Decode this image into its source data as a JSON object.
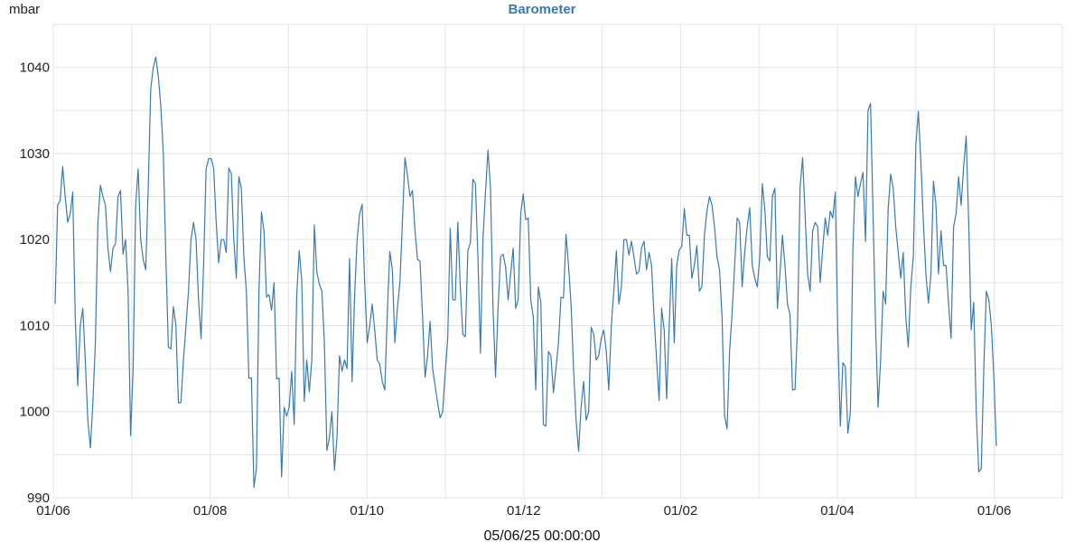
{
  "colors": {
    "line": "#3a7ab0",
    "title": "#3a7ab0",
    "grid": "#e3e3e3"
  },
  "footer": {
    "timestamp": "05/06/25 00:00:00"
  },
  "chart_data": {
    "type": "line",
    "title": "Barometer",
    "ylabel": "mbar",
    "xlabel": "",
    "ylim": [
      990,
      1045
    ],
    "y_ticks": [
      990,
      1000,
      1010,
      1020,
      1030,
      1040
    ],
    "x_tick_labels": [
      "01/06",
      "01/08",
      "01/10",
      "01/12",
      "01/02",
      "01/04",
      "01/06"
    ],
    "grid": true,
    "series": [
      {
        "values": [
          1012.5,
          1024.0,
          1024.5,
          1028.5,
          1025.0,
          1022.0,
          1023.0,
          1025.5,
          1011.0,
          1003.0,
          1010.0,
          1012.0,
          1006.0,
          999.0,
          995.8,
          1001.0,
          1008.0,
          1022.0,
          1026.3,
          1025.0,
          1024.0,
          1019.0,
          1016.3,
          1019.0,
          1019.5,
          1025.0,
          1025.7,
          1018.3,
          1020.0,
          1014.0,
          997.2,
          1005.0,
          1024.0,
          1028.2,
          1020.0,
          1017.7,
          1016.5,
          1026.0,
          1037.5,
          1040.0,
          1041.2,
          1039.0,
          1035.5,
          1030.0,
          1018.0,
          1007.5,
          1007.3,
          1012.2,
          1010.0,
          1001.0,
          1001.1,
          1006.0,
          1010.0,
          1014.0,
          1020.0,
          1022.0,
          1020.0,
          1013.0,
          1008.5,
          1017.0,
          1028.2,
          1029.4,
          1029.4,
          1028.3,
          1022.0,
          1017.3,
          1020.0,
          1020.0,
          1018.5,
          1028.3,
          1027.7,
          1020.0,
          1015.5,
          1027.3,
          1026.0,
          1018.0,
          1014.0,
          1003.9,
          1003.9,
          991.2,
          993.5,
          1014.0,
          1023.2,
          1021.0,
          1013.3,
          1013.6,
          1011.8,
          1015.0,
          1003.8,
          1003.9,
          992.4,
          1000.5,
          999.5,
          1000.5,
          1004.7,
          998.5,
          1013.5,
          1018.7,
          1015.3,
          1001.2,
          1006.0,
          1002.3,
          1006.0,
          1021.7,
          1016.2,
          1014.8,
          1014.0,
          1008.0,
          995.5,
          997.0,
          1000.0,
          993.2,
          997.0,
          1006.5,
          1004.7,
          1006.0,
          1005.0,
          1017.8,
          1003.5,
          1013.5,
          1020.0,
          1023.0,
          1024.1,
          1015.0,
          1008.0,
          1010.0,
          1012.5,
          1009.5,
          1006.0,
          1005.5,
          1003.5,
          1002.5,
          1011.5,
          1018.6,
          1016.5,
          1008.0,
          1012.0,
          1015.0,
          1022.0,
          1029.5,
          1027.5,
          1025.0,
          1025.7,
          1021.0,
          1017.7,
          1017.5,
          1011.0,
          1004.0,
          1006.5,
          1010.5,
          1005.0,
          1003.0,
          1001.0,
          999.3,
          1000.0,
          1004.5,
          1008.5,
          1021.3,
          1013.0,
          1013.0,
          1022.0,
          1014.5,
          1009.0,
          1008.7,
          1018.7,
          1019.6,
          1027.0,
          1026.5,
          1018.0,
          1006.8,
          1020.0,
          1025.5,
          1030.4,
          1026.0,
          1012.0,
          1004.0,
          1012.0,
          1018.0,
          1018.3,
          1016.8,
          1013.0,
          1016.0,
          1019.0,
          1012.0,
          1013.0,
          1023.0,
          1025.3,
          1022.3,
          1022.5,
          1013.0,
          1011.0,
          1002.5,
          1014.5,
          1012.7,
          998.5,
          998.3,
          1007.0,
          1006.5,
          1002.2,
          1005.0,
          1008.0,
          1013.3,
          1013.2,
          1020.6,
          1017.0,
          1012.5,
          1005.0,
          999.0,
          995.4,
          1000.5,
          1003.5,
          999.0,
          1000.0,
          1009.8,
          1009.0,
          1006.0,
          1006.5,
          1008.5,
          1009.5,
          1007.0,
          1002.5,
          1010.0,
          1014.0,
          1018.7,
          1012.5,
          1014.5,
          1020.0,
          1020.0,
          1018.2,
          1019.8,
          1018.0,
          1016.0,
          1016.3,
          1019.0,
          1019.8,
          1016.5,
          1018.5,
          1017.0,
          1011.0,
          1006.0,
          1001.3,
          1012.0,
          1009.5,
          1001.5,
          1010.0,
          1017.8,
          1008.0,
          1017.0,
          1018.8,
          1019.2,
          1023.6,
          1020.5,
          1020.5,
          1015.5,
          1017.0,
          1019.3,
          1014.0,
          1014.5,
          1020.5,
          1023.3,
          1025.0,
          1024.0,
          1021.5,
          1018.0,
          1016.5,
          1011.0,
          999.5,
          998.0,
          1007.0,
          1011.5,
          1017.0,
          1022.5,
          1022.0,
          1014.5,
          1018.5,
          1021.5,
          1023.7,
          1017.0,
          1015.5,
          1014.5,
          1018.0,
          1026.5,
          1023.5,
          1018.0,
          1017.5,
          1025.0,
          1026.0,
          1012.0,
          1016.0,
          1020.5,
          1017.0,
          1012.5,
          1011.3,
          1002.5,
          1002.6,
          1010.0,
          1026.0,
          1029.5,
          1023.0,
          1016.0,
          1014.0,
          1021.0,
          1022.0,
          1021.5,
          1015.0,
          1019.0,
          1022.5,
          1020.5,
          1023.3,
          1022.5,
          1025.5,
          1009.0,
          998.3,
          1005.7,
          1005.2,
          997.5,
          1000.0,
          1019.0,
          1027.3,
          1025.0,
          1026.5,
          1027.8,
          1019.8,
          1035.0,
          1035.8,
          1023.0,
          1010.0,
          1000.5,
          1006.0,
          1014.0,
          1012.5,
          1023.5,
          1027.6,
          1026.0,
          1021.5,
          1018.5,
          1015.5,
          1018.5,
          1011.0,
          1007.5,
          1014.5,
          1018.0,
          1031.0,
          1034.9,
          1029.0,
          1022.0,
          1016.0,
          1012.6,
          1016.0,
          1026.8,
          1024.0,
          1016.0,
          1021.0,
          1017.0,
          1017.0,
          1012.5,
          1008.5,
          1021.5,
          1023.0,
          1027.3,
          1024.0,
          1028.5,
          1032.0,
          1022.0,
          1009.5,
          1012.7,
          1000.0,
          993.0,
          993.4,
          1005.0,
          1014.0,
          1013.0,
          1010.0,
          1004.0,
          996.0
        ]
      }
    ]
  }
}
